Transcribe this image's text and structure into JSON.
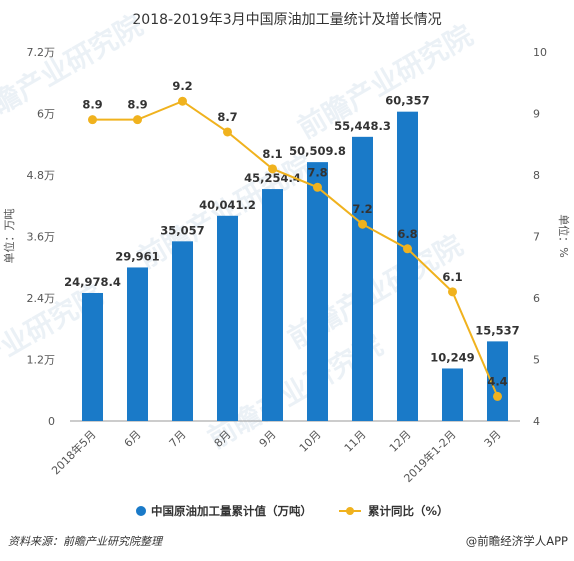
{
  "chart_data": {
    "type": "bar+line",
    "title": "2018-2019年3月中国原油加工量统计及增长情况",
    "categories": [
      "2018年5月",
      "6月",
      "7月",
      "8月",
      "9月",
      "10月",
      "11月",
      "12月",
      "2019年1-2月",
      "3月"
    ],
    "series": [
      {
        "name": "中国原油加工量累计值（万吨）",
        "type": "bar",
        "axis": "left",
        "color": "#1a7ac8",
        "values": [
          24978.4,
          29961,
          35057,
          40041.2,
          45254.4,
          50509.8,
          55448.3,
          60357,
          10249,
          15537
        ],
        "labels": [
          "24,978.4",
          "29,961",
          "35,057",
          "40,041.2",
          "45,254.4",
          "50,509.8",
          "55,448.3",
          "60,357",
          "10,249",
          "15,537"
        ]
      },
      {
        "name": "累计同比（%）",
        "type": "line",
        "axis": "right",
        "color": "#f0b21e",
        "values": [
          8.9,
          8.9,
          9.2,
          8.7,
          8.1,
          7.8,
          7.2,
          6.8,
          6.1,
          4.4
        ],
        "labels": [
          "8.9",
          "8.9",
          "9.2",
          "8.7",
          "8.1",
          "7.8",
          "7.2",
          "6.8",
          "6.1",
          "4.4"
        ]
      }
    ],
    "left_axis": {
      "label": "单位：万吨",
      "ylim": [
        0,
        72000
      ],
      "ticks": [
        0,
        12000,
        24000,
        36000,
        48000,
        60000,
        72000
      ],
      "tick_labels": [
        "0",
        "1.2万",
        "2.4万",
        "3.6万",
        "4.8万",
        "6万",
        "7.2万"
      ]
    },
    "right_axis": {
      "label": "单位：%",
      "ylim": [
        4,
        10
      ],
      "ticks": [
        4,
        5,
        6,
        7,
        8,
        9,
        10
      ],
      "tick_labels": [
        "4",
        "5",
        "6",
        "7",
        "8",
        "9",
        "10"
      ]
    },
    "grid": false,
    "legend_position": "bottom"
  },
  "footer": {
    "source": "资料来源：前瞻产业研究院整理",
    "brand": "@前瞻经济学人APP"
  },
  "watermark": "前瞻产业研究院"
}
